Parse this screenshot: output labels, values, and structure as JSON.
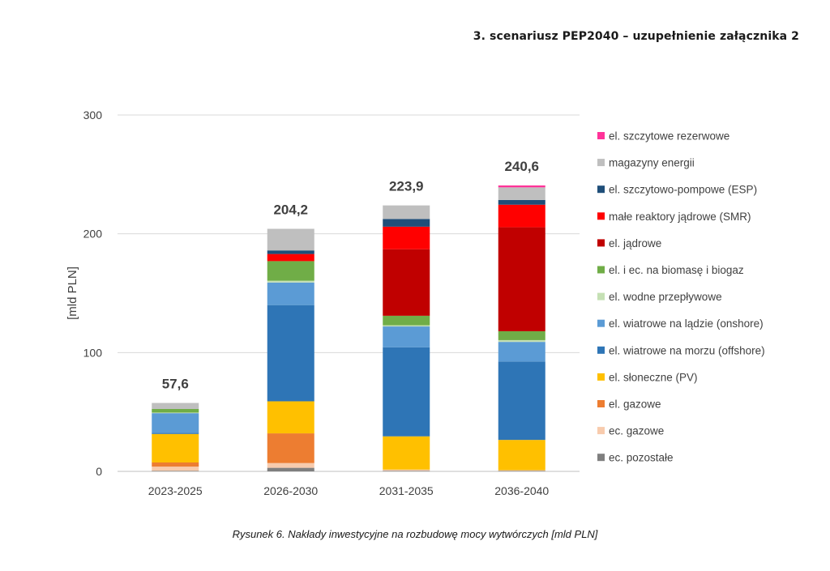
{
  "header": {
    "text": "3. scenariusz PEP2040 – uzupełnienie załącznika 2"
  },
  "caption": {
    "text": "Rysunek 6. Nakłady inwestycyjne na rozbudowę mocy wytwórczych [mld PLN]"
  },
  "chart_data": {
    "type": "bar",
    "stacked": true,
    "title": "",
    "xlabel": "",
    "ylabel": "[mld PLN]",
    "ylim": [
      0,
      300
    ],
    "yticks": [
      0,
      100,
      200,
      300
    ],
    "grid": true,
    "legend_position": "right",
    "categories": [
      "2023-2025",
      "2026-2030",
      "2031-2035",
      "2036-2040"
    ],
    "totals": [
      "57,6",
      "204,2",
      "223,9",
      "240,6"
    ],
    "series": [
      {
        "name": "ec. pozostałe",
        "color": "#7f7f7f",
        "values": [
          0.5,
          3.0,
          0.5,
          0.5
        ]
      },
      {
        "name": "ec. gazowe",
        "color": "#f8cbad",
        "values": [
          3.5,
          4.0,
          1.0,
          0.5
        ]
      },
      {
        "name": "el. gazowe",
        "color": "#ed7d31",
        "values": [
          3.5,
          25.0,
          0.0,
          0.0
        ]
      },
      {
        "name": "el. słoneczne (PV)",
        "color": "#ffc000",
        "values": [
          24.0,
          27.0,
          28.0,
          25.5
        ]
      },
      {
        "name": "el. wiatrowe na morzu (offshore)",
        "color": "#2e75b6",
        "values": [
          1.0,
          81.0,
          75.0,
          66.0
        ]
      },
      {
        "name": "el. wiatrowe na lądzie (onshore)",
        "color": "#5b9bd5",
        "values": [
          16.5,
          19.0,
          17.5,
          16.5
        ]
      },
      {
        "name": "el. wodne przepływowe",
        "color": "#c5e0b4",
        "values": [
          0.5,
          1.5,
          1.0,
          1.5
        ]
      },
      {
        "name": "el. i ec. na biomasę i biogaz",
        "color": "#70ad47",
        "values": [
          3.0,
          16.5,
          8.0,
          7.5
        ]
      },
      {
        "name": "el. jądrowe",
        "color": "#c00000",
        "values": [
          0.0,
          0.0,
          56.0,
          87.5
        ]
      },
      {
        "name": "małe reaktory jądrowe (SMR)",
        "color": "#ff0000",
        "values": [
          0.0,
          6.0,
          19.0,
          19.0
        ]
      },
      {
        "name": "el. szczytowo-pompowe (ESP)",
        "color": "#1f4e79",
        "values": [
          0.0,
          3.0,
          6.5,
          4.0
        ]
      },
      {
        "name": "magazyny energii",
        "color": "#bfbfbf",
        "values": [
          5.1,
          18.2,
          11.4,
          10.6
        ]
      },
      {
        "name": "el. szczytowe rezerwowe",
        "color": "#ff3399",
        "values": [
          0.0,
          0.0,
          0.0,
          1.6
        ]
      }
    ]
  }
}
